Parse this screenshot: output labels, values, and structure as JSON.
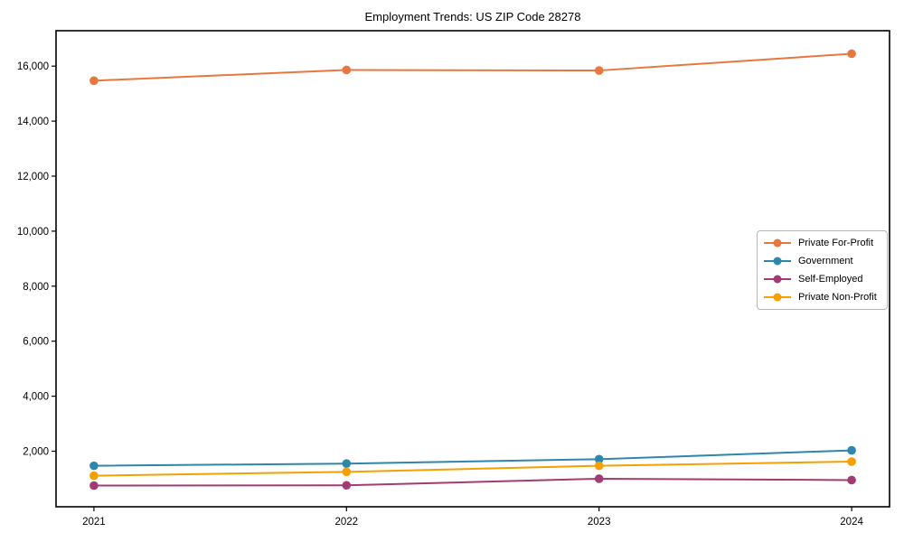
{
  "title": "Employment Trends: US ZIP Code 28278",
  "chart_data": {
    "type": "line",
    "title": "Employment Trends: US ZIP Code 28278",
    "categories": [
      "2021",
      "2022",
      "2023",
      "2024"
    ],
    "series": [
      {
        "name": "Private For-Profit",
        "color": "#E8773F",
        "values": [
          15470,
          15860,
          15840,
          16450
        ]
      },
      {
        "name": "Government",
        "color": "#2E86AB",
        "values": [
          1470,
          1550,
          1710,
          2030
        ]
      },
      {
        "name": "Self-Employed",
        "color": "#A23B72",
        "values": [
          750,
          760,
          1000,
          950
        ]
      },
      {
        "name": "Private Non-Profit",
        "color": "#F5A000",
        "values": [
          1110,
          1250,
          1470,
          1620
        ]
      }
    ],
    "xlabel": "",
    "ylabel": "",
    "xlim": [
      -0.15,
      3.15
    ],
    "ylim": [
      -20,
      17287
    ],
    "yticks": [
      2000,
      4000,
      6000,
      8000,
      10000,
      12000,
      14000,
      16000
    ],
    "ytick_labels": [
      "2,000",
      "4,000",
      "6,000",
      "8,000",
      "10,000",
      "12,000",
      "14,000",
      "16,000"
    ],
    "grid": false,
    "legend_position": "center right",
    "axis_color": "#000000",
    "text_color": "#000000",
    "background_color": "#ffffff",
    "marker": "circle",
    "marker_radius": 4.8,
    "line_width": 2
  },
  "layout_note_values_are_data_not_layout": null
}
